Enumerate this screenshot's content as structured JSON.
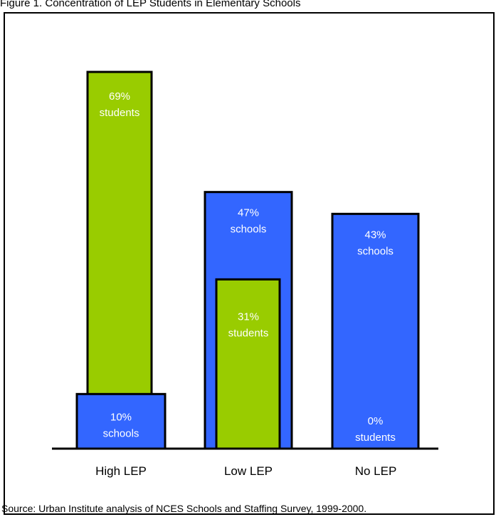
{
  "title": "Figure 1.  Concentration of LEP Students in Elementary Schools",
  "source": "Source: Urban Institute analysis of NCES Schools and Staffing Survey, 1999-2000.",
  "colors": {
    "schools": "#3366ff",
    "students": "#99cc00",
    "outline": "#000000",
    "label": "#ffffff"
  },
  "chart_data": {
    "type": "bar",
    "categories": [
      "High LEP",
      "Low LEP",
      "No LEP"
    ],
    "series": [
      {
        "key": "schools",
        "unit": "schools",
        "values": [
          10,
          47,
          43
        ],
        "labels": [
          "10%",
          "47%",
          "43%"
        ]
      },
      {
        "key": "students",
        "unit": "students",
        "values": [
          69,
          31,
          0
        ],
        "labels": [
          "69%",
          "31%",
          "0%"
        ]
      }
    ],
    "value_unit": "percent",
    "ylim": [
      0,
      80
    ],
    "grid": false,
    "xlabel": "",
    "ylabel": ""
  }
}
